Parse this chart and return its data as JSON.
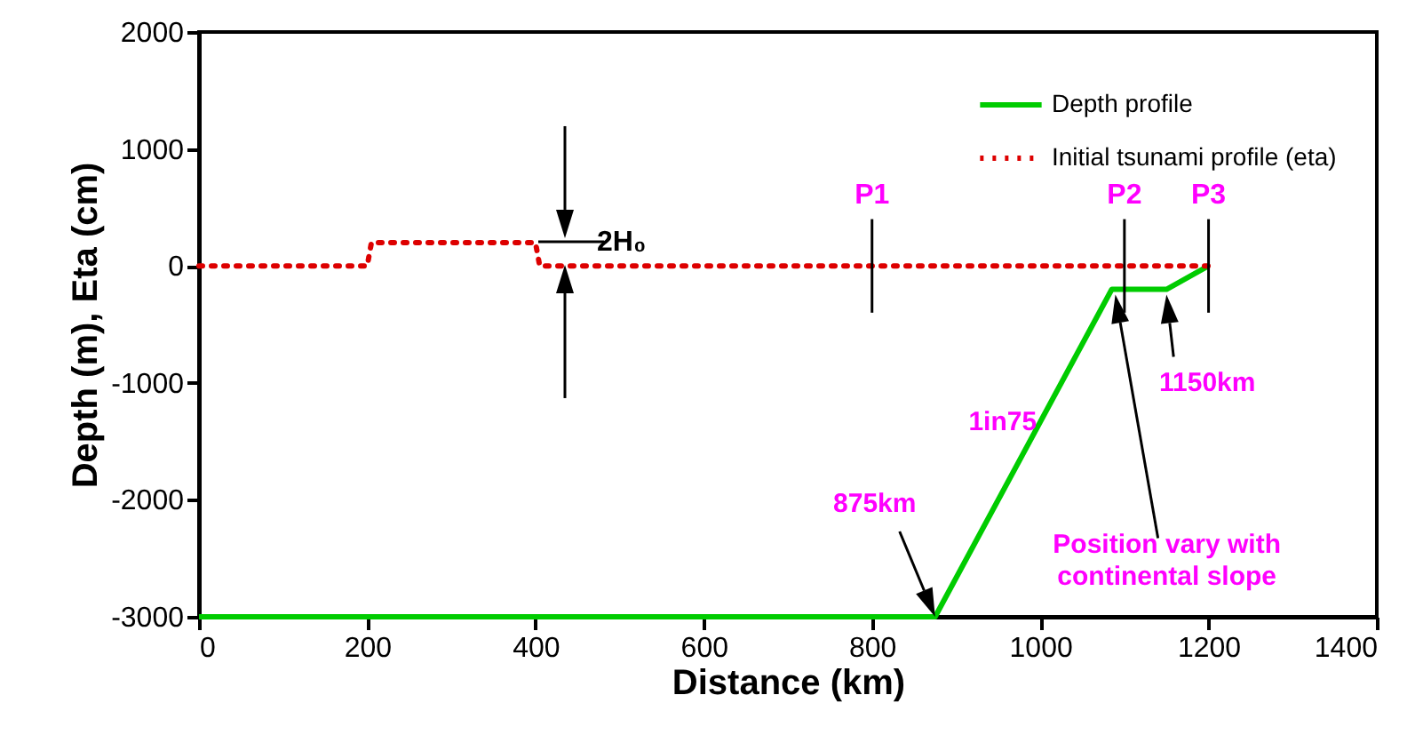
{
  "chart_data": {
    "type": "line",
    "xlabel": "Distance (km)",
    "ylabel": "Depth (m), Eta (cm)",
    "xlim": [
      0,
      1400
    ],
    "xticks": [
      0,
      200,
      400,
      600,
      800,
      1000,
      1200,
      1400
    ],
    "ylim": [
      -3000,
      2000
    ],
    "yticks": [
      -3000,
      -2000,
      -1000,
      0,
      1000,
      2000
    ],
    "grid": false,
    "legend": "top right",
    "series": [
      {
        "name": "Depth profile",
        "color": "#00cc00",
        "line_style": "solid",
        "x": [
          0,
          875,
          1085,
          1150,
          1200
        ],
        "values": [
          -3000,
          -3000,
          -200,
          -200,
          0
        ]
      },
      {
        "name": "Initial tsunami profile (eta)",
        "color": "#dd0000",
        "line_style": "dotted",
        "x": [
          0,
          200,
          205,
          400,
          405,
          1200
        ],
        "values": [
          0,
          0,
          200,
          200,
          0,
          0
        ]
      }
    ],
    "ref_lines": [
      {
        "axis": "x",
        "value": 800,
        "label": "P1",
        "color": "#000000"
      },
      {
        "axis": "x",
        "value": 1100,
        "label": "P2",
        "color": "#000000"
      },
      {
        "axis": "x",
        "value": 1200,
        "label": "P3",
        "color": "#000000"
      }
    ],
    "annotations": [
      "2H₀",
      "875km",
      {
        "text": "1in75",
        "x": 1000,
        "y": -1330
      },
      {
        "text": "1150km",
        "x": 1150,
        "y": -200
      },
      "Position vary with continental slope"
    ]
  }
}
